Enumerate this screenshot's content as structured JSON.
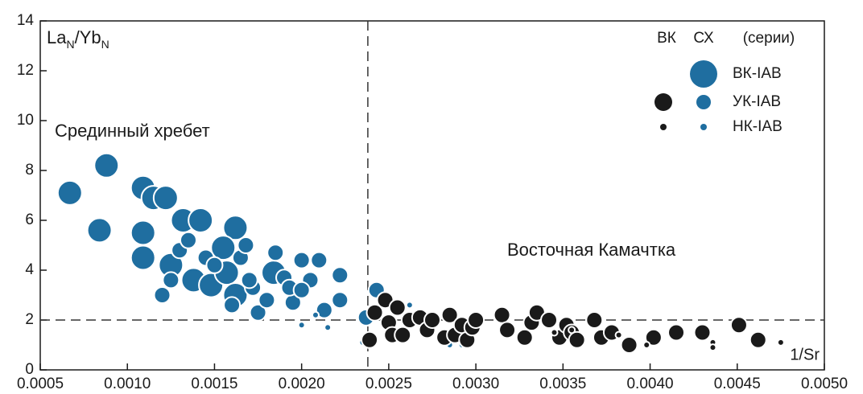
{
  "chart_data": {
    "type": "scatter",
    "x_label": "1/Sr",
    "y_label_parts": [
      "La",
      "N",
      "/Yb",
      "N"
    ],
    "annotations": [
      "Срединный хребет",
      "Восточная Камачтка"
    ],
    "xlim": [
      0.0005,
      0.005
    ],
    "ylim": [
      0,
      14
    ],
    "xticks": [
      0.0005,
      {
        "value": 0.001,
        "label": "0.0010"
      },
      0.0015,
      {
        "value": 0.002,
        "label": "0.0020"
      },
      0.0025,
      {
        "value": 0.003,
        "label": "0.0030"
      },
      0.0035,
      {
        "value": 0.004,
        "label": "0.0040"
      },
      0.0045,
      {
        "value": 0.005,
        "label": "0.0050"
      }
    ],
    "yticks": [
      0,
      2,
      4,
      6,
      8,
      10,
      12,
      14
    ],
    "reference_lines": {
      "x": 0.00238,
      "y": 2
    },
    "legend": {
      "columns": [
        "ВК",
        "СХ",
        "(серии)"
      ],
      "rows": [
        "ВК-IAB",
        "УК-IAB",
        "НК-IAB"
      ]
    },
    "series": [
      {
        "name": "ВК-IAB",
        "legend_column": "СХ",
        "color": "#1f6ea0",
        "x": [
          0.00067,
          0.00088,
          0.00084,
          0.00109,
          0.00115,
          0.00122,
          0.00109,
          0.00109,
          0.00125,
          0.00132,
          0.00142,
          0.00138,
          0.00148,
          0.00157,
          0.00162,
          0.00155,
          0.00184,
          0.00162
        ],
        "y": [
          7.1,
          8.2,
          5.6,
          7.3,
          6.9,
          6.9,
          5.5,
          4.5,
          4.2,
          6.0,
          6.0,
          3.6,
          3.4,
          3.9,
          5.7,
          4.9,
          3.9,
          3.0
        ]
      },
      {
        "name": "УК-IAB",
        "legend_column": "СХ",
        "color": "#1f6ea0",
        "x": [
          0.0012,
          0.0013,
          0.00135,
          0.00145,
          0.0015,
          0.00165,
          0.00168,
          0.00172,
          0.00175,
          0.0018,
          0.00185,
          0.0019,
          0.00195,
          0.002,
          0.00205,
          0.0021,
          0.00213,
          0.00222,
          0.00222,
          0.00237,
          0.00243,
          0.0016,
          0.0017,
          0.00193,
          0.002,
          0.00125
        ],
        "y": [
          3.0,
          4.8,
          5.2,
          4.5,
          4.2,
          4.5,
          5.0,
          3.3,
          2.3,
          2.8,
          4.7,
          3.7,
          2.7,
          4.4,
          3.6,
          4.4,
          2.4,
          3.8,
          2.8,
          2.1,
          3.2,
          2.6,
          3.6,
          3.3,
          3.2,
          3.6
        ]
      },
      {
        "name": "НК-IAB",
        "legend_column": "СХ",
        "color": "#1f6ea0",
        "x": [
          0.002,
          0.00208,
          0.00215,
          0.00235,
          0.00262,
          0.00283,
          0.00285,
          0.00292
        ],
        "y": [
          1.8,
          2.2,
          1.7,
          1.1,
          2.6,
          1.5,
          1.0,
          1.0
        ]
      },
      {
        "name": "УК-IAB",
        "legend_column": "ВК",
        "color": "#1a1a1a",
        "x": [
          0.00239,
          0.00242,
          0.00248,
          0.0025,
          0.00252,
          0.00255,
          0.00258,
          0.00262,
          0.00268,
          0.00272,
          0.00275,
          0.00282,
          0.00285,
          0.00288,
          0.00292,
          0.00295,
          0.00298,
          0.003,
          0.00315,
          0.00318,
          0.00328,
          0.00332,
          0.00335,
          0.00342,
          0.00348,
          0.00352,
          0.00355,
          0.00358,
          0.00368,
          0.00372,
          0.00378,
          0.00388,
          0.00402,
          0.00415,
          0.0043,
          0.00451,
          0.00462
        ],
        "y": [
          1.2,
          2.3,
          2.8,
          1.9,
          1.4,
          2.5,
          1.4,
          2.0,
          2.1,
          1.6,
          2.0,
          1.3,
          2.2,
          1.4,
          1.8,
          1.2,
          1.7,
          2.0,
          2.2,
          1.6,
          1.3,
          1.9,
          2.3,
          2.0,
          1.3,
          1.8,
          1.5,
          1.2,
          2.0,
          1.3,
          1.5,
          1.0,
          1.3,
          1.5,
          1.5,
          1.8,
          1.2
        ]
      },
      {
        "name": "НК-IAB",
        "legend_column": "ВК",
        "color": "#1a1a1a",
        "x": [
          0.00355,
          0.00382,
          0.00398,
          0.00436,
          0.00436,
          0.00475,
          0.00345
        ],
        "y": [
          1.6,
          1.4,
          1.0,
          1.1,
          0.9,
          1.1,
          1.5
        ]
      }
    ]
  }
}
